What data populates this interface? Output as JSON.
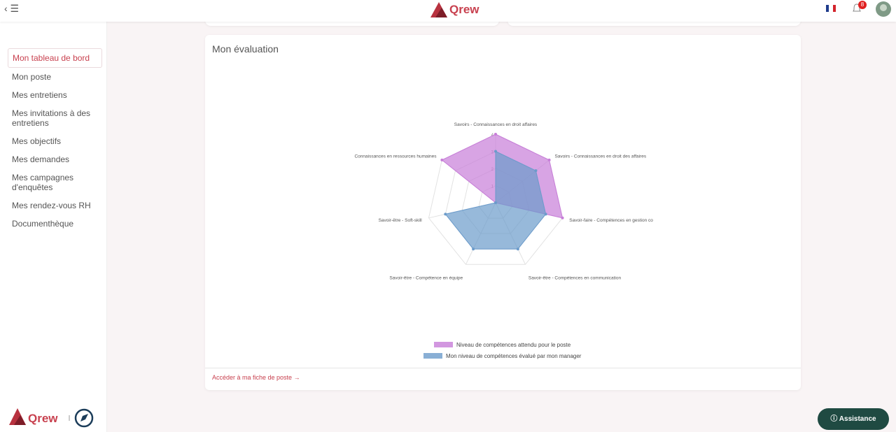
{
  "header": {
    "logo": "Qrew",
    "notifications": "8"
  },
  "nav": [
    "Mon tableau de bord",
    "Mon poste",
    "Mes entretiens",
    "Mes invitations à des entretiens",
    "Mes objectifs",
    "Mes demandes",
    "Mes campagnes d'enquêtes",
    "Mes rendez-vous RH",
    "Documenthèque"
  ],
  "card": {
    "title": "Mon évaluation",
    "link": "Accéder à ma fiche de poste"
  },
  "assistance": "Assistance",
  "chart_data": {
    "type": "radar",
    "categories": [
      "Savoirs - Connaissances en droit affaires",
      "Savoirs - Connaissances en droit des affaires",
      "Savoir-faire - Compétences en gestion co",
      "Savoir-être - Compétences en communication",
      "Savoir-être - Compétence en équipe",
      "Savoir-être - Soft-skill",
      "Connaissances en ressources humaines"
    ],
    "rlim": [
      0,
      4
    ],
    "rticks": [
      1,
      2,
      3,
      4
    ],
    "series": [
      {
        "name": "Niveau de compétences attendu pour le poste",
        "color": "#c77dd8",
        "values": [
          4,
          4,
          4,
          0,
          0,
          0,
          4
        ]
      },
      {
        "name": "Mon niveau de compétences évalué par mon manager",
        "color": "#6b9bcb",
        "values": [
          3,
          3,
          3,
          3,
          3,
          3,
          0
        ]
      }
    ]
  }
}
